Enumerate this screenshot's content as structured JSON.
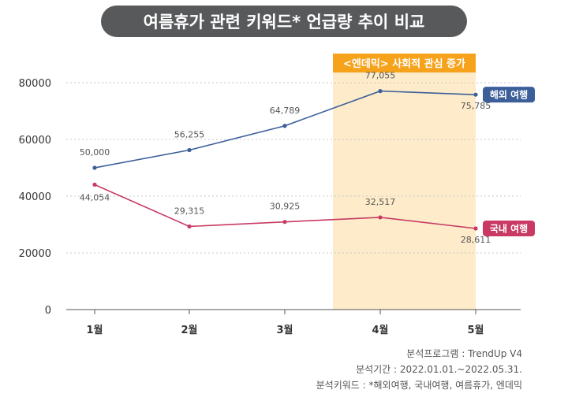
{
  "title": "여름휴가 관련 키워드* 언급량 추이 비교",
  "notes": [
    "분석프로그램 : TrendUp V4",
    "분석기간 : 2022.01.01.~2022.05.31.",
    "분석키워드 : *해외여행, 국내여행, 여름휴가, 엔데믹"
  ],
  "colors": {
    "overseas": "#3c5f9a",
    "domestic": "#c83a63",
    "highlight_fill": "#fdebc9",
    "highlight_label": "#f6a21b",
    "grid": "#c8c8c8"
  },
  "chart_data": {
    "type": "line",
    "categories": [
      "1월",
      "2월",
      "3월",
      "4월",
      "5월"
    ],
    "ylim": [
      0,
      80000
    ],
    "yticks": [
      0,
      20000,
      40000,
      60000,
      80000
    ],
    "grid": "horizontal-dotted",
    "series": [
      {
        "name": "해외 여행",
        "values": [
          50000,
          56255,
          64789,
          77055,
          75785
        ],
        "value_labels": [
          "50,000",
          "56,255",
          "64,789",
          "77,055",
          "75,785"
        ]
      },
      {
        "name": "국내 여행",
        "values": [
          44054,
          29315,
          30925,
          32517,
          28611
        ],
        "value_labels": [
          "44,054",
          "29,315",
          "30,925",
          "32,517",
          "28,611"
        ]
      }
    ],
    "highlight": {
      "label": "<엔데믹> 사회적 관심 증가",
      "from": "4월",
      "to": "5월"
    }
  }
}
